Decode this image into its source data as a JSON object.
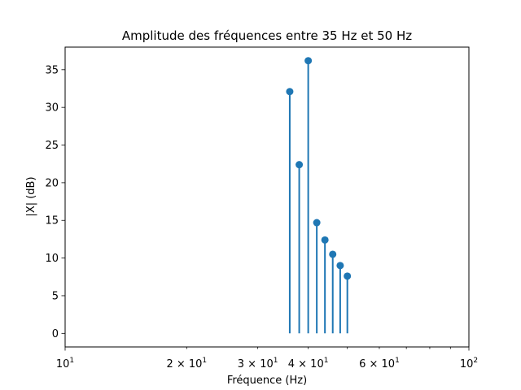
{
  "chart_data": {
    "type": "stem",
    "title": "Amplitude des fréquences entre 35 Hz et 50 Hz",
    "xlabel": "Fréquence (Hz)",
    "ylabel": "|X| (dB)",
    "xscale": "log",
    "xlim": [
      10,
      100
    ],
    "ylim": [
      -1.8,
      38
    ],
    "x": [
      36,
      38,
      40,
      42,
      44,
      46,
      48,
      50
    ],
    "y": [
      32.1,
      22.4,
      36.2,
      14.7,
      12.4,
      10.5,
      9.0,
      7.6
    ],
    "color": "#1f77b4",
    "grid": false,
    "x_major_ticks": [
      {
        "value": 10,
        "label": "10",
        "exp": "1"
      },
      {
        "value": 100,
        "label": "10",
        "exp": "2"
      }
    ],
    "x_minor_tick_labels": [
      {
        "value": 20,
        "label": "2 × 10",
        "exp": "1"
      },
      {
        "value": 30,
        "label": "3 × 10",
        "exp": "1"
      },
      {
        "value": 40,
        "label": "4 × 10",
        "exp": "1"
      },
      {
        "value": 60,
        "label": "6 × 10",
        "exp": "1"
      }
    ],
    "y_ticks": [
      0,
      5,
      10,
      15,
      20,
      25,
      30,
      35
    ]
  }
}
